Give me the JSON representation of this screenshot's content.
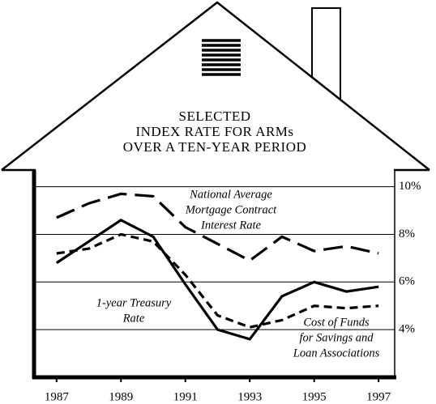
{
  "chart_data": {
    "type": "line",
    "title": [
      "SELECTED",
      "INDEX RATE FOR ARMs",
      "OVER A TEN-YEAR PERIOD"
    ],
    "x": [
      1987,
      1988,
      1989,
      1990,
      1991,
      1992,
      1993,
      1994,
      1995,
      1996,
      1997
    ],
    "series": [
      {
        "label": [
          "National Average",
          "Mortgage Contract",
          "Interest Rate"
        ],
        "style": "long-dash",
        "color": "#000000",
        "values": [
          8.7,
          9.3,
          9.7,
          9.6,
          8.3,
          7.6,
          6.9,
          7.9,
          7.3,
          7.5,
          7.2
        ]
      },
      {
        "label": [
          "1-year Treasury",
          "Rate"
        ],
        "style": "solid",
        "color": "#000000",
        "values": [
          6.8,
          7.7,
          8.6,
          7.9,
          5.9,
          4.0,
          3.6,
          5.4,
          6.0,
          5.6,
          5.8
        ]
      },
      {
        "label": [
          "Cost of Funds",
          "for Savings and",
          "Loan Associations"
        ],
        "style": "short-dash",
        "color": "#000000",
        "values": [
          7.2,
          7.4,
          8.0,
          7.7,
          6.3,
          4.6,
          4.1,
          4.4,
          5.0,
          4.9,
          5.0
        ]
      }
    ],
    "xlim": [
      1986.3,
      1997.5
    ],
    "xticks": [
      1987,
      1989,
      1991,
      1993,
      1995,
      1997
    ],
    "ylim": [
      2,
      10.7
    ],
    "yticks": [
      {
        "value": 4,
        "label": "4%"
      },
      {
        "value": 6,
        "label": "6%"
      },
      {
        "value": 8,
        "label": "8%"
      },
      {
        "value": 10,
        "label": "10%"
      }
    ],
    "grid": true
  }
}
